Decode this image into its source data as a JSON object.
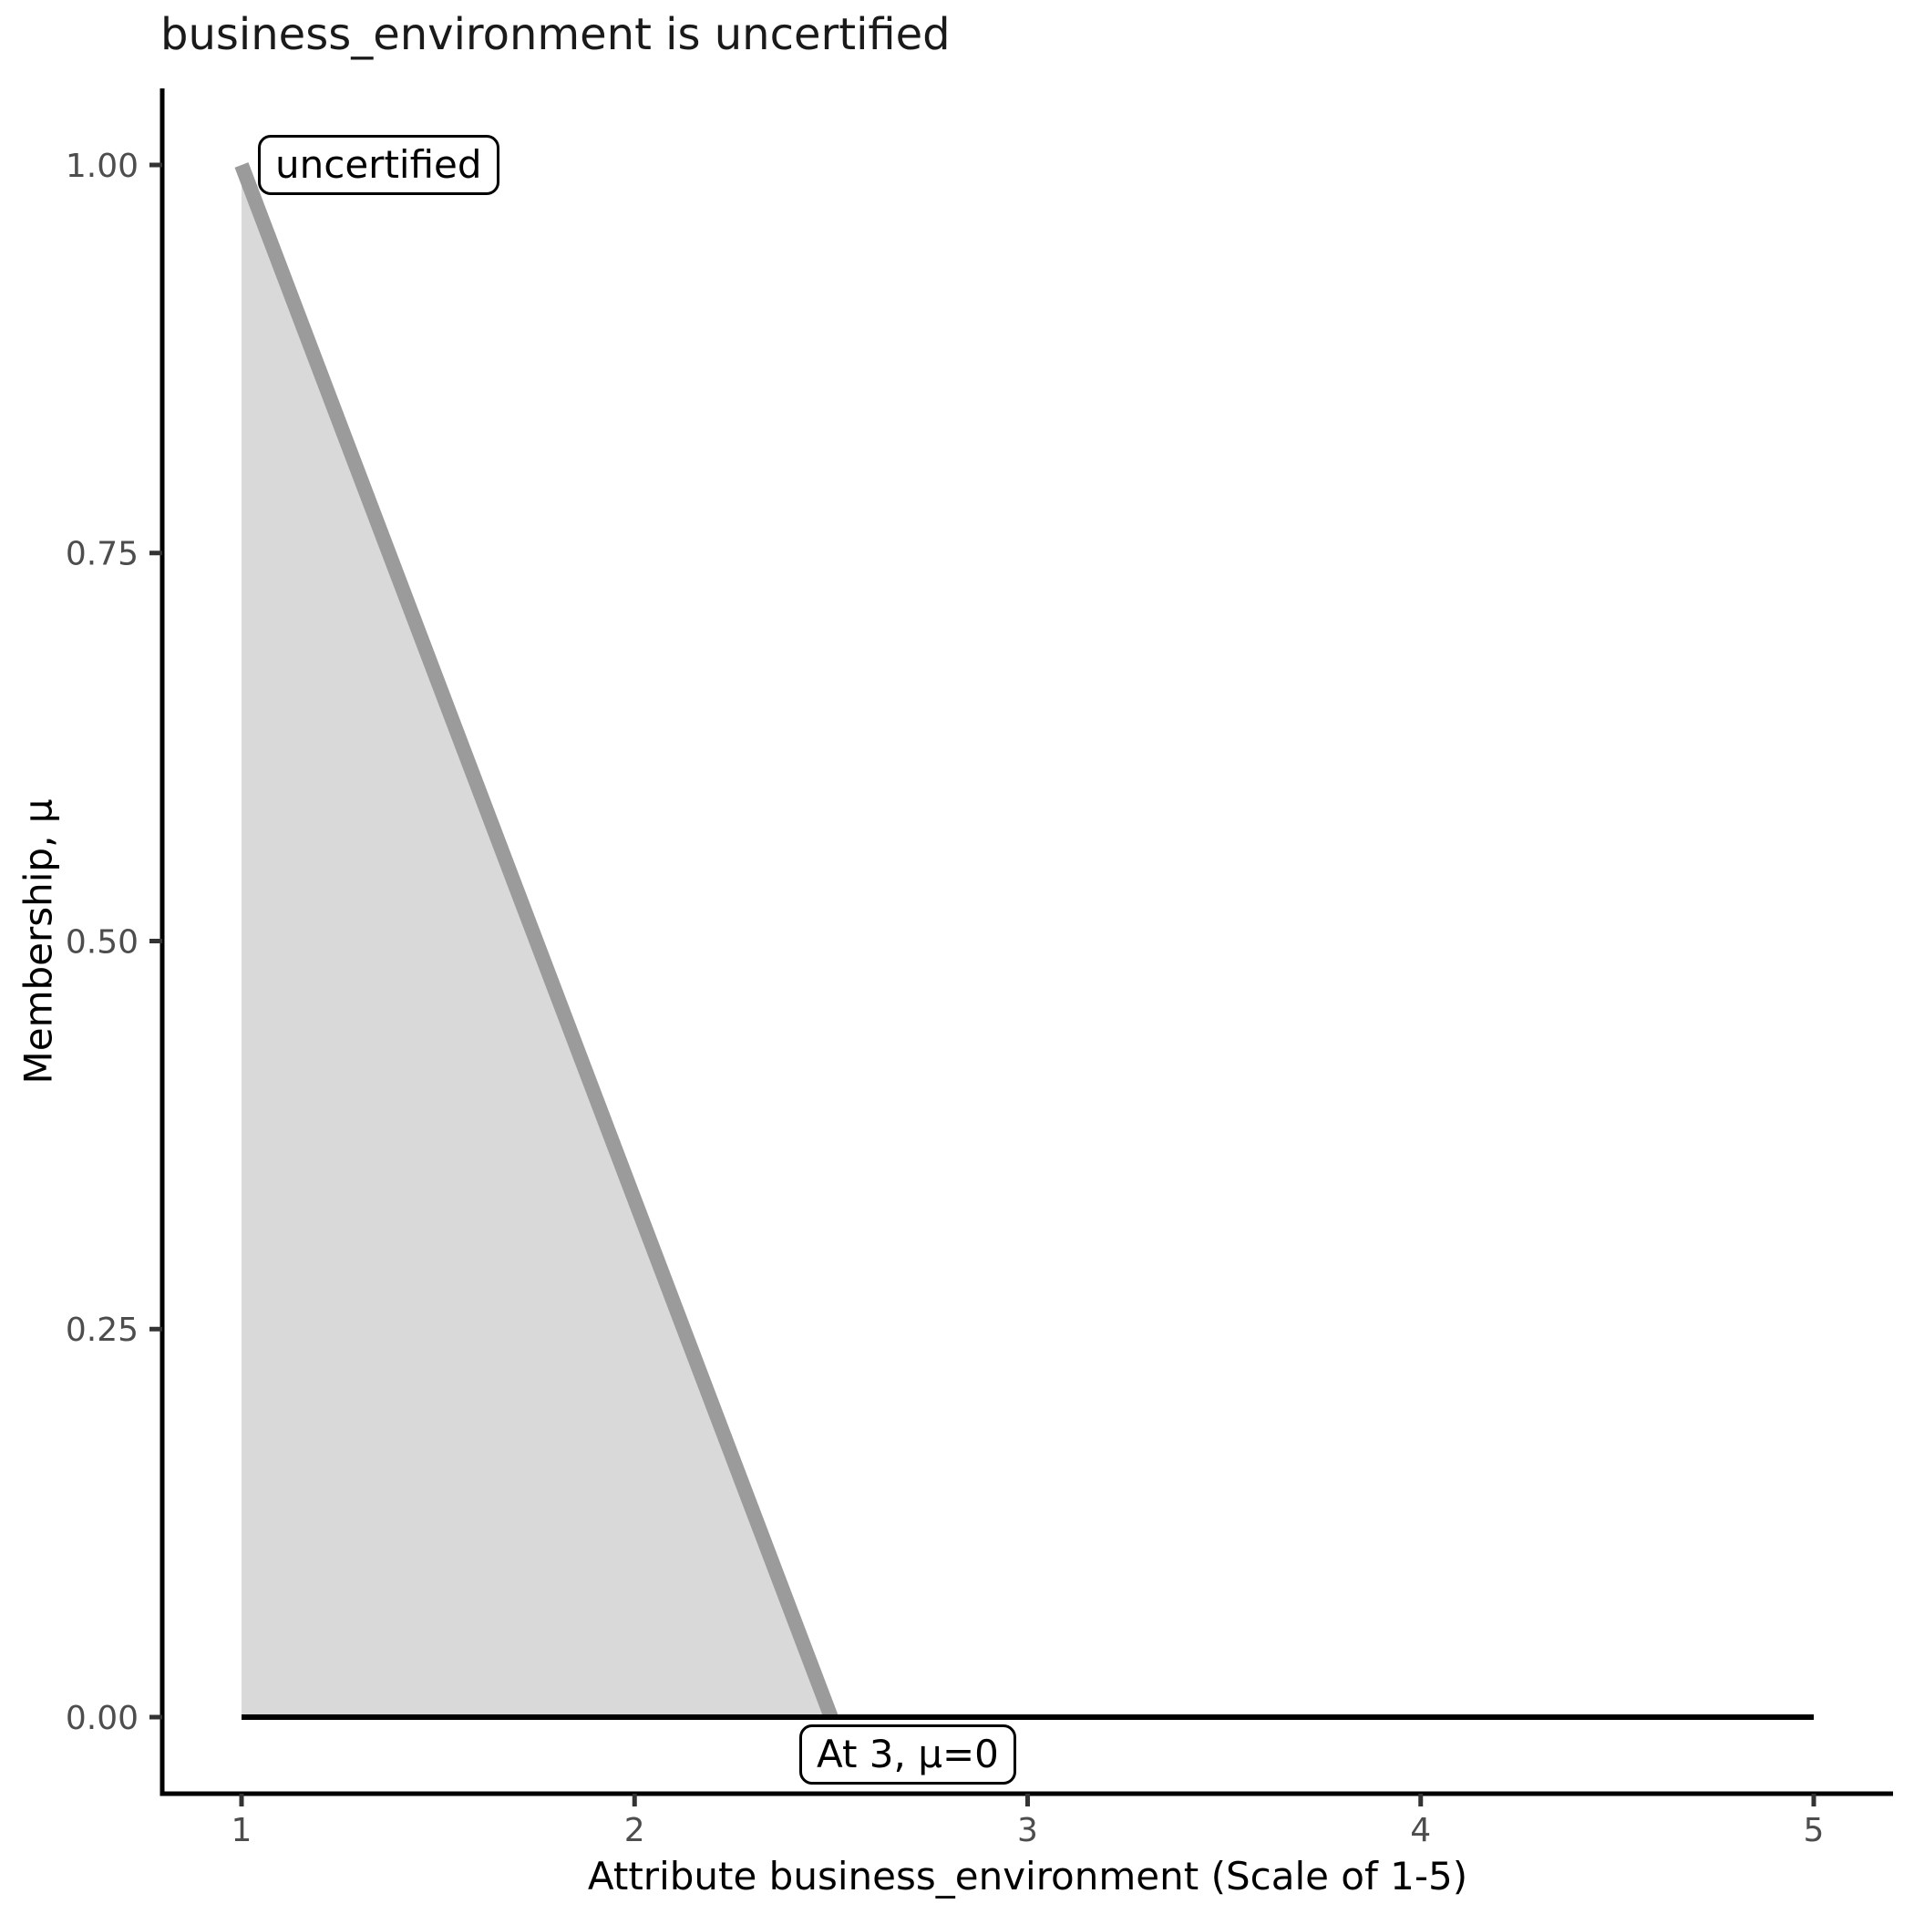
{
  "chart_data": {
    "type": "area",
    "title": "business_environment is uncertified",
    "xlabel": "Attribute business_environment (Scale of 1-5)",
    "ylabel": "Membership, μ",
    "xlim": [
      1,
      5
    ],
    "ylim": [
      0,
      1
    ],
    "grid": false,
    "legend": false,
    "x_tick_values": [
      1,
      2,
      3,
      4,
      5
    ],
    "x_tick_labels": [
      "1",
      "2",
      "3",
      "4",
      "5"
    ],
    "y_tick_values": [
      1.0,
      0.75,
      0.5,
      0.25,
      0.0
    ],
    "y_tick_labels": [
      "1.00",
      "0.75",
      "0.50",
      "0.25",
      "0.00"
    ],
    "area": {
      "name": "uncertified membership region",
      "fill": "#d9d9d9",
      "points": [
        [
          1,
          1
        ],
        [
          2.5,
          0
        ],
        [
          1,
          0
        ]
      ]
    },
    "series": [
      {
        "name": "uncertified membership boundary",
        "color": "#9b9b9b",
        "points": [
          [
            1,
            1
          ],
          [
            2.5,
            0
          ]
        ]
      },
      {
        "name": "zero membership baseline",
        "color": "#000000",
        "points": [
          [
            1,
            0
          ],
          [
            5,
            0
          ]
        ]
      }
    ],
    "annotations": [
      {
        "label": "uncertified",
        "x": 1.05,
        "y": 1.0
      },
      {
        "label": "At 3, μ=0",
        "x": 2.7,
        "y": 0.0
      }
    ],
    "colors": {
      "axis": "#000000",
      "tick_mark": "#333333",
      "tick_label": "#4d4d4d",
      "title": "#1a1a1a",
      "background": "#ffffff"
    }
  }
}
